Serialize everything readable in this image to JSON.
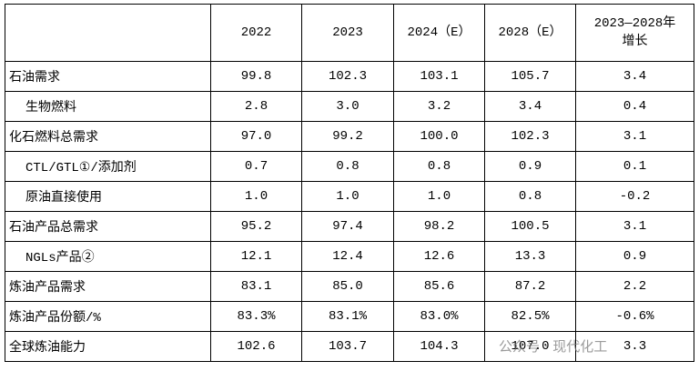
{
  "header": {
    "columns": [
      "",
      "2022",
      "2023",
      "2024（E）",
      "2028（E）",
      [
        "2023—2028年",
        "增长"
      ]
    ]
  },
  "table": {
    "rows": [
      {
        "label": "石油需求",
        "indent": false,
        "cells": [
          "99.8",
          "102.3",
          "103.1",
          "105.7",
          "3.4"
        ]
      },
      {
        "label": "生物燃料",
        "indent": true,
        "cells": [
          "2.8",
          "3.0",
          "3.2",
          "3.4",
          "0.4"
        ]
      },
      {
        "label": "化石燃料总需求",
        "indent": false,
        "cells": [
          "97.0",
          "99.2",
          "100.0",
          "102.3",
          "3.1"
        ]
      },
      {
        "label": "CTL/GTL①/添加剂",
        "indent": true,
        "cells": [
          "0.7",
          "0.8",
          "0.8",
          "0.9",
          "0.1"
        ]
      },
      {
        "label": "原油直接使用",
        "indent": true,
        "cells": [
          "1.0",
          "1.0",
          "1.0",
          "0.8",
          "-0.2"
        ]
      },
      {
        "label": "石油产品总需求",
        "indent": false,
        "cells": [
          "95.2",
          "97.4",
          "98.2",
          "100.5",
          "3.1"
        ]
      },
      {
        "label": "NGLs产品②",
        "indent": true,
        "cells": [
          "12.1",
          "12.4",
          "12.6",
          "13.3",
          "0.9"
        ]
      },
      {
        "label": "炼油产品需求",
        "indent": false,
        "cells": [
          "83.1",
          "85.0",
          "85.6",
          "87.2",
          "2.2"
        ]
      },
      {
        "label": "炼油产品份额/%",
        "indent": false,
        "cells": [
          "83.3%",
          "83.1%",
          "83.0%",
          "82.5%",
          "-0.6%"
        ]
      },
      {
        "label": "全球炼油能力",
        "indent": false,
        "cells": [
          "102.6",
          "103.7",
          "104.3",
          "107.0",
          "3.3"
        ]
      }
    ]
  },
  "watermark": "公众号 · 现代化工"
}
